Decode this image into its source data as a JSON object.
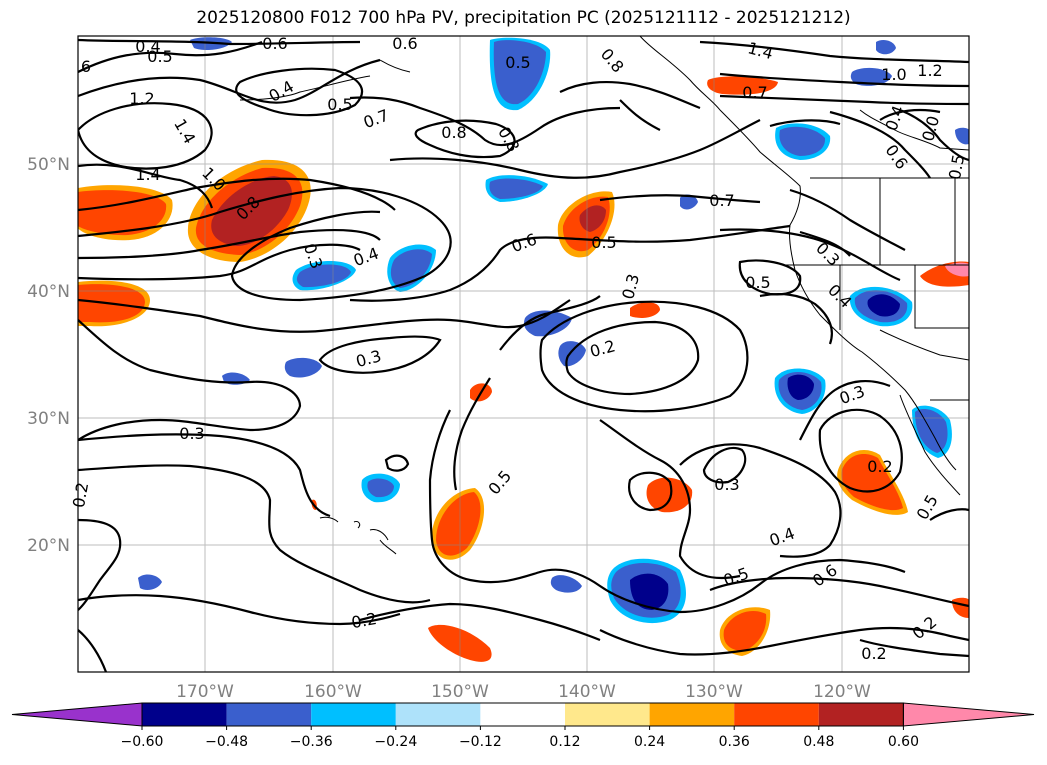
{
  "title": "2025120800 F012 700 hPa PV, precipitation PC (2025121112 - 2025121212)",
  "map": {
    "lat_labels": [
      "50°N",
      "40°N",
      "30°N",
      "20°N"
    ],
    "lon_labels": [
      "170°W",
      "160°W",
      "150°W",
      "140°W",
      "130°W",
      "120°W"
    ],
    "contour_labels": [
      {
        "text": "0.4"
      },
      {
        "text": "0.5"
      },
      {
        "text": "0.6"
      },
      {
        "text": "0.6"
      },
      {
        "text": "0.5"
      },
      {
        "text": "1.4"
      },
      {
        "text": "1.0"
      },
      {
        "text": "1.2"
      },
      {
        "text": "1.2"
      },
      {
        "text": "0.4"
      },
      {
        "text": "0.5"
      },
      {
        "text": "0.7"
      },
      {
        "text": "0.8"
      },
      {
        "text": "0.8"
      },
      {
        "text": "0.8"
      },
      {
        "text": "0.7"
      },
      {
        "text": "1.4"
      },
      {
        "text": "1.4"
      },
      {
        "text": "1.0"
      },
      {
        "text": "0.8"
      },
      {
        "text": "0.3"
      },
      {
        "text": "0.4"
      },
      {
        "text": "0.6"
      },
      {
        "text": "0.5"
      },
      {
        "text": "0.7"
      },
      {
        "text": "0.3"
      },
      {
        "text": "0.2"
      },
      {
        "text": "0.3"
      },
      {
        "text": "0.5"
      },
      {
        "text": "0.3"
      },
      {
        "text": "0.4"
      },
      {
        "text": "0.3"
      },
      {
        "text": "0.3"
      },
      {
        "text": "0.5"
      },
      {
        "text": "0.3"
      },
      {
        "text": "0.2"
      },
      {
        "text": "0.4"
      },
      {
        "text": "0.5"
      },
      {
        "text": "0.6"
      },
      {
        "text": "0.5"
      },
      {
        "text": "0.2"
      },
      {
        "text": "0.2"
      },
      {
        "text": "0.2"
      },
      {
        "text": "0.2"
      },
      {
        "text": "0.4"
      },
      {
        "text": "0.6"
      },
      {
        "text": "0.5"
      },
      {
        "text": "0.0"
      },
      {
        "text": "6"
      }
    ]
  },
  "colorbar": {
    "ticks": [
      "−0.60",
      "−0.48",
      "−0.36",
      "−0.24",
      "−0.12",
      "0.12",
      "0.24",
      "0.36",
      "0.48",
      "0.60"
    ],
    "colors": [
      "#9932cc",
      "#00008b",
      "#3a5fcd",
      "#00bfff",
      "#aee2fa",
      "#ffffff",
      "#ffe88c",
      "#ffa500",
      "#ff4500",
      "#b22222",
      "#ff88aa"
    ]
  }
}
